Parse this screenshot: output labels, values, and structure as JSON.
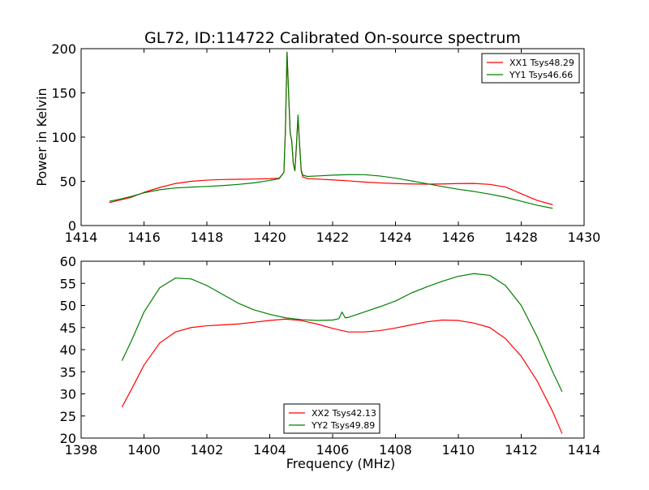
{
  "title": "GL72, ID:114722 Calibrated On-source spectrum",
  "chart_data": [
    {
      "type": "line",
      "ylabel": "Power in Kelvin",
      "xlabel": "",
      "xlim": [
        1414,
        1430
      ],
      "ylim": [
        0,
        200
      ],
      "xticks": [
        1414,
        1416,
        1418,
        1420,
        1422,
        1424,
        1426,
        1428,
        1430
      ],
      "yticks": [
        0,
        50,
        100,
        150,
        200
      ],
      "legend_position": "top-right",
      "series": [
        {
          "name": "XX1 Tsys48.29",
          "color": "#ff0000",
          "points": [
            [
              1414.9,
              26
            ],
            [
              1415.2,
              28.5
            ],
            [
              1415.6,
              32
            ],
            [
              1416.0,
              37.5
            ],
            [
              1416.5,
              43
            ],
            [
              1417.0,
              47.5
            ],
            [
              1417.5,
              50
            ],
            [
              1418.0,
              51.3
            ],
            [
              1418.5,
              52
            ],
            [
              1419.0,
              52.3
            ],
            [
              1419.5,
              52.6
            ],
            [
              1420.0,
              53
            ],
            [
              1420.3,
              53.5
            ],
            [
              1420.45,
              60
            ],
            [
              1420.5,
              110
            ],
            [
              1420.55,
              196
            ],
            [
              1420.6,
              150
            ],
            [
              1420.65,
              105
            ],
            [
              1420.7,
              95
            ],
            [
              1420.75,
              70
            ],
            [
              1420.8,
              62
            ],
            [
              1420.85,
              90
            ],
            [
              1420.9,
              122
            ],
            [
              1420.95,
              90
            ],
            [
              1421.0,
              62
            ],
            [
              1421.05,
              55
            ],
            [
              1421.2,
              53
            ],
            [
              1421.5,
              52.6
            ],
            [
              1422.0,
              51.6
            ],
            [
              1422.5,
              50.5
            ],
            [
              1423.0,
              49.2
            ],
            [
              1423.5,
              48.2
            ],
            [
              1424.0,
              47.5
            ],
            [
              1424.5,
              47
            ],
            [
              1425.0,
              46.8
            ],
            [
              1425.5,
              47
            ],
            [
              1426.0,
              47.5
            ],
            [
              1426.5,
              47.6
            ],
            [
              1427.0,
              46.5
            ],
            [
              1427.5,
              43.5
            ],
            [
              1428.0,
              36
            ],
            [
              1428.5,
              28.5
            ],
            [
              1429.0,
              23.5
            ]
          ]
        },
        {
          "name": "YY1 Tsys46.66",
          "color": "#008000",
          "points": [
            [
              1414.9,
              27.5
            ],
            [
              1415.2,
              29.5
            ],
            [
              1415.6,
              33
            ],
            [
              1416.0,
              37
            ],
            [
              1416.5,
              40.5
            ],
            [
              1417.0,
              42.5
            ],
            [
              1417.5,
              43.5
            ],
            [
              1418.0,
              44.2
            ],
            [
              1418.5,
              45.2
            ],
            [
              1419.0,
              46.5
            ],
            [
              1419.5,
              48.3
            ],
            [
              1420.0,
              51
            ],
            [
              1420.3,
              53
            ],
            [
              1420.45,
              60
            ],
            [
              1420.5,
              110
            ],
            [
              1420.55,
              196
            ],
            [
              1420.6,
              150
            ],
            [
              1420.65,
              105
            ],
            [
              1420.7,
              96
            ],
            [
              1420.75,
              70
            ],
            [
              1420.8,
              62
            ],
            [
              1420.85,
              92
            ],
            [
              1420.9,
              125
            ],
            [
              1420.95,
              92
            ],
            [
              1421.0,
              63
            ],
            [
              1421.05,
              57
            ],
            [
              1421.2,
              55.5
            ],
            [
              1421.5,
              56
            ],
            [
              1422.0,
              57
            ],
            [
              1422.5,
              57.6
            ],
            [
              1423.0,
              57.5
            ],
            [
              1423.5,
              56
            ],
            [
              1424.0,
              53.6
            ],
            [
              1424.5,
              50.5
            ],
            [
              1425.0,
              47.3
            ],
            [
              1425.5,
              44
            ],
            [
              1426.0,
              41
            ],
            [
              1426.5,
              38.5
            ],
            [
              1427.0,
              35.5
            ],
            [
              1427.5,
              32
            ],
            [
              1428.0,
              27.5
            ],
            [
              1428.5,
              23
            ],
            [
              1429.0,
              19.5
            ]
          ]
        }
      ]
    },
    {
      "type": "line",
      "xlabel": "Frequency (MHz)",
      "ylabel": "",
      "xlim": [
        1398,
        1414
      ],
      "ylim": [
        20,
        60
      ],
      "xticks": [
        1398,
        1400,
        1402,
        1404,
        1406,
        1408,
        1410,
        1412,
        1414
      ],
      "yticks": [
        20,
        25,
        30,
        35,
        40,
        45,
        50,
        55,
        60
      ],
      "legend_position": "bottom-center",
      "series": [
        {
          "name": "XX2 Tsys42.13",
          "color": "#ff0000",
          "points": [
            [
              1399.3,
              27
            ],
            [
              1399.6,
              31
            ],
            [
              1400.0,
              36.5
            ],
            [
              1400.5,
              41.5
            ],
            [
              1401.0,
              44
            ],
            [
              1401.5,
              45
            ],
            [
              1402.0,
              45.4
            ],
            [
              1402.5,
              45.6
            ],
            [
              1403.0,
              45.8
            ],
            [
              1403.5,
              46.2
            ],
            [
              1404.0,
              46.6
            ],
            [
              1404.5,
              46.9
            ],
            [
              1405.0,
              46.6
            ],
            [
              1405.5,
              45.8
            ],
            [
              1406.0,
              44.8
            ],
            [
              1406.5,
              44
            ],
            [
              1407.0,
              44
            ],
            [
              1407.5,
              44.3
            ],
            [
              1408.0,
              44.9
            ],
            [
              1408.5,
              45.6
            ],
            [
              1409.0,
              46.3
            ],
            [
              1409.5,
              46.7
            ],
            [
              1410.0,
              46.6
            ],
            [
              1410.5,
              46
            ],
            [
              1411.0,
              45
            ],
            [
              1411.5,
              42.5
            ],
            [
              1412.0,
              38.5
            ],
            [
              1412.5,
              33
            ],
            [
              1413.0,
              26
            ],
            [
              1413.3,
              21
            ]
          ]
        },
        {
          "name": "YY2 Tsys49.89",
          "color": "#008000",
          "points": [
            [
              1399.3,
              37.5
            ],
            [
              1399.6,
              42
            ],
            [
              1400.0,
              48.5
            ],
            [
              1400.5,
              54
            ],
            [
              1401.0,
              56.2
            ],
            [
              1401.5,
              56
            ],
            [
              1402.0,
              54.5
            ],
            [
              1402.5,
              52.5
            ],
            [
              1403.0,
              50.5
            ],
            [
              1403.5,
              49
            ],
            [
              1404.0,
              48
            ],
            [
              1404.5,
              47.2
            ],
            [
              1405.0,
              46.8
            ],
            [
              1405.5,
              46.6
            ],
            [
              1406.0,
              46.7
            ],
            [
              1406.2,
              47
            ],
            [
              1406.3,
              48.5
            ],
            [
              1406.4,
              47.2
            ],
            [
              1406.5,
              47.3
            ],
            [
              1407.0,
              48.5
            ],
            [
              1407.5,
              49.7
            ],
            [
              1408.0,
              51
            ],
            [
              1408.5,
              52.8
            ],
            [
              1409.0,
              54.2
            ],
            [
              1409.5,
              55.5
            ],
            [
              1410.0,
              56.6
            ],
            [
              1410.5,
              57.2
            ],
            [
              1411.0,
              56.8
            ],
            [
              1411.5,
              54.5
            ],
            [
              1412.0,
              50
            ],
            [
              1412.5,
              43
            ],
            [
              1413.0,
              35
            ],
            [
              1413.3,
              30.5
            ]
          ]
        }
      ]
    }
  ]
}
